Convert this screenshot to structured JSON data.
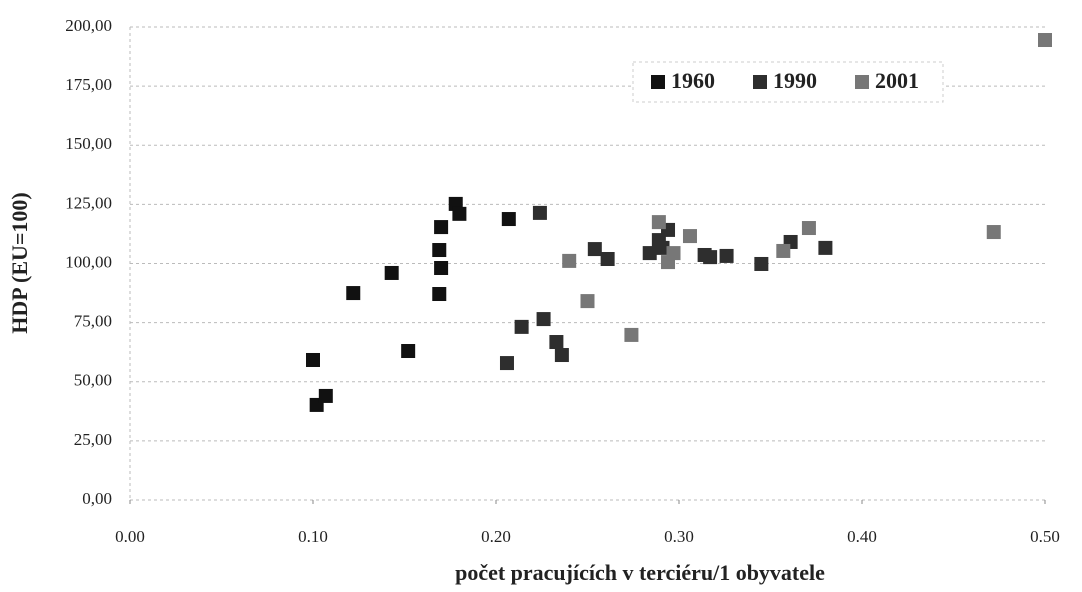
{
  "chart_data": {
    "type": "scatter",
    "xlabel": "počet pracujících v terciéru/1 obyvatele",
    "ylabel": "HDP (EU=100)",
    "xlim": [
      0,
      0.5
    ],
    "xticks": [
      {
        "value": 0,
        "label": "0.00"
      },
      {
        "value": 0.1,
        "label": "0.10"
      },
      {
        "value": 0.2,
        "label": "0.20"
      },
      {
        "value": 0.3,
        "label": "0.30"
      },
      {
        "value": 0.4,
        "label": "0.40"
      },
      {
        "value": 0.5,
        "label": "0.50"
      }
    ],
    "ylim": [
      0,
      200
    ],
    "yticks": [
      {
        "value": 0,
        "label": "0,00"
      },
      {
        "value": 25,
        "label": "25,00"
      },
      {
        "value": 50,
        "label": "50,00"
      },
      {
        "value": 75,
        "label": "75,00"
      },
      {
        "value": 100,
        "label": "100,00"
      },
      {
        "value": 125,
        "label": "125,00"
      },
      {
        "value": 150,
        "label": "150,00"
      },
      {
        "value": 175,
        "label": "175,00"
      },
      {
        "value": 200,
        "label": "200,00"
      }
    ],
    "grid": true,
    "legend": "top",
    "series": [
      {
        "name": "1960",
        "color": "#111111",
        "x": [
          0.1,
          0.102,
          0.107,
          0.122,
          0.143,
          0.152,
          0.169,
          0.169,
          0.17,
          0.17,
          0.178,
          0.18,
          0.207
        ],
        "values": [
          59.2,
          40.2,
          44.0,
          87.5,
          96.0,
          63.0,
          87.1,
          105.7,
          115.4,
          98.1,
          125.2,
          121.0,
          118.8
        ]
      },
      {
        "name": "1990",
        "color": "#2e2e2e",
        "x": [
          0.206,
          0.214,
          0.224,
          0.226,
          0.233,
          0.236,
          0.254,
          0.261,
          0.284,
          0.289,
          0.291,
          0.294,
          0.314,
          0.317,
          0.326,
          0.345,
          0.361,
          0.38
        ],
        "values": [
          57.9,
          73.2,
          121.4,
          76.5,
          66.8,
          61.3,
          106.1,
          101.9,
          104.4,
          109.9,
          106.6,
          114.2,
          103.6,
          102.7,
          103.2,
          99.8,
          109.1,
          106.6
        ]
      },
      {
        "name": "2001",
        "color": "#777777",
        "x": [
          0.24,
          0.25,
          0.274,
          0.289,
          0.294,
          0.297,
          0.306,
          0.357,
          0.371,
          0.472,
          0.5
        ],
        "values": [
          101.1,
          84.1,
          69.8,
          117.5,
          100.6,
          104.4,
          111.6,
          105.3,
          115.0,
          113.3,
          194.5
        ]
      }
    ]
  }
}
